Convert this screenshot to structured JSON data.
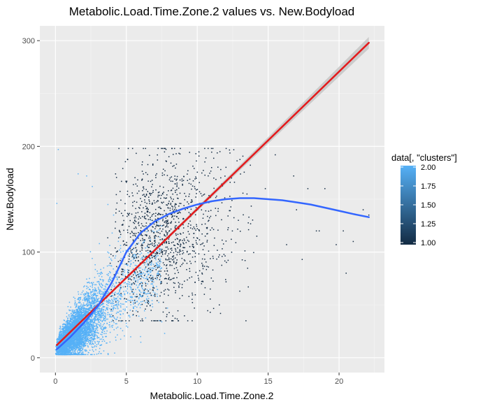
{
  "chart_data": {
    "type": "scatter",
    "title": "Metabolic.Load.Time.Zone.2  values vs.  New.Bodyload",
    "xlabel": "Metabolic.Load.Time.Zone.2",
    "ylabel": "New.Bodyload",
    "xlim": [
      -1.1,
      23.2
    ],
    "ylim": [
      -14,
      314
    ],
    "x_ticks": [
      0,
      5,
      10,
      15,
      20
    ],
    "y_ticks": [
      0,
      100,
      200,
      300
    ],
    "x_tick_labels": [
      "0",
      "5",
      "10",
      "15",
      "20"
    ],
    "y_tick_labels": [
      "0",
      "100",
      "200",
      "300"
    ],
    "grid": true,
    "background": "#ebebeb",
    "legend": {
      "title": "data[, \"clusters\"]",
      "position": "right",
      "labels": [
        "2.00",
        "1.75",
        "1.50",
        "1.25",
        "1.00"
      ],
      "values": [
        2.0,
        1.75,
        1.5,
        1.25,
        1.0
      ],
      "color_low": "#132b43",
      "color_high": "#56b1f7"
    },
    "series": [
      {
        "cluster": 2,
        "color": "#56b1f7",
        "points": [
          [
            0.1,
            146
          ],
          [
            0.2,
            197
          ],
          [
            1.6,
            174
          ],
          [
            2.2,
            172
          ],
          [
            2.6,
            162
          ],
          [
            3.7,
            145
          ],
          [
            4.1,
            135
          ],
          [
            3.1,
            108
          ],
          [
            4.0,
            118
          ],
          [
            6.2,
            62
          ],
          [
            6.9,
            67
          ],
          [
            6.5,
            58
          ],
          [
            7.5,
            34
          ],
          [
            7.7,
            23
          ],
          [
            7.9,
            47
          ],
          [
            5.5,
            47
          ],
          [
            4.4,
            80
          ],
          [
            3.8,
            95
          ],
          [
            3.4,
            85
          ],
          [
            2.8,
            88
          ],
          [
            5.2,
            40
          ],
          [
            5.0,
            30
          ],
          [
            4.3,
            28
          ],
          [
            6.0,
            20
          ],
          [
            3.6,
            70
          ],
          [
            2.4,
            75
          ],
          [
            1.8,
            60
          ]
        ]
      },
      {
        "cluster": 1,
        "color": "#132b43",
        "points": [
          [
            9.8,
            47
          ],
          [
            11.1,
            83
          ],
          [
            12.9,
            130
          ],
          [
            14.8,
            160
          ],
          [
            16.3,
            107
          ],
          [
            17.4,
            93
          ],
          [
            18.6,
            120
          ],
          [
            19.8,
            107
          ],
          [
            20.5,
            80
          ],
          [
            21.0,
            110
          ],
          [
            21.7,
            140
          ],
          [
            22.1,
            135
          ],
          [
            13.0,
            63
          ],
          [
            13.6,
            67
          ],
          [
            12.0,
            74
          ],
          [
            15.5,
            192
          ],
          [
            17.0,
            140
          ],
          [
            19.0,
            160
          ],
          [
            16.8,
            172
          ],
          [
            17.8,
            160
          ],
          [
            18.4,
            120
          ],
          [
            20.3,
            120
          ],
          [
            14.2,
            115
          ],
          [
            10.5,
            60
          ],
          [
            11.6,
            195
          ]
        ]
      }
    ],
    "fits": [
      {
        "method": "lm",
        "color": "#e41a1c",
        "x": [
          0.1,
          22.1
        ],
        "y": [
          12,
          298
        ],
        "ci_color": "#bdbdbd"
      },
      {
        "method": "loess",
        "color": "#3366ff",
        "x": [
          0.1,
          1,
          2,
          3,
          4,
          5,
          6,
          7,
          8,
          9,
          10,
          11,
          12,
          13,
          14,
          15,
          16,
          17,
          18,
          19,
          20,
          21,
          22.1
        ],
        "y": [
          8,
          19,
          33,
          49,
          72,
          100,
          118,
          129,
          136,
          141,
          145,
          148,
          150,
          151,
          151,
          150,
          149,
          147,
          145,
          142,
          139,
          136,
          133
        ]
      }
    ]
  }
}
